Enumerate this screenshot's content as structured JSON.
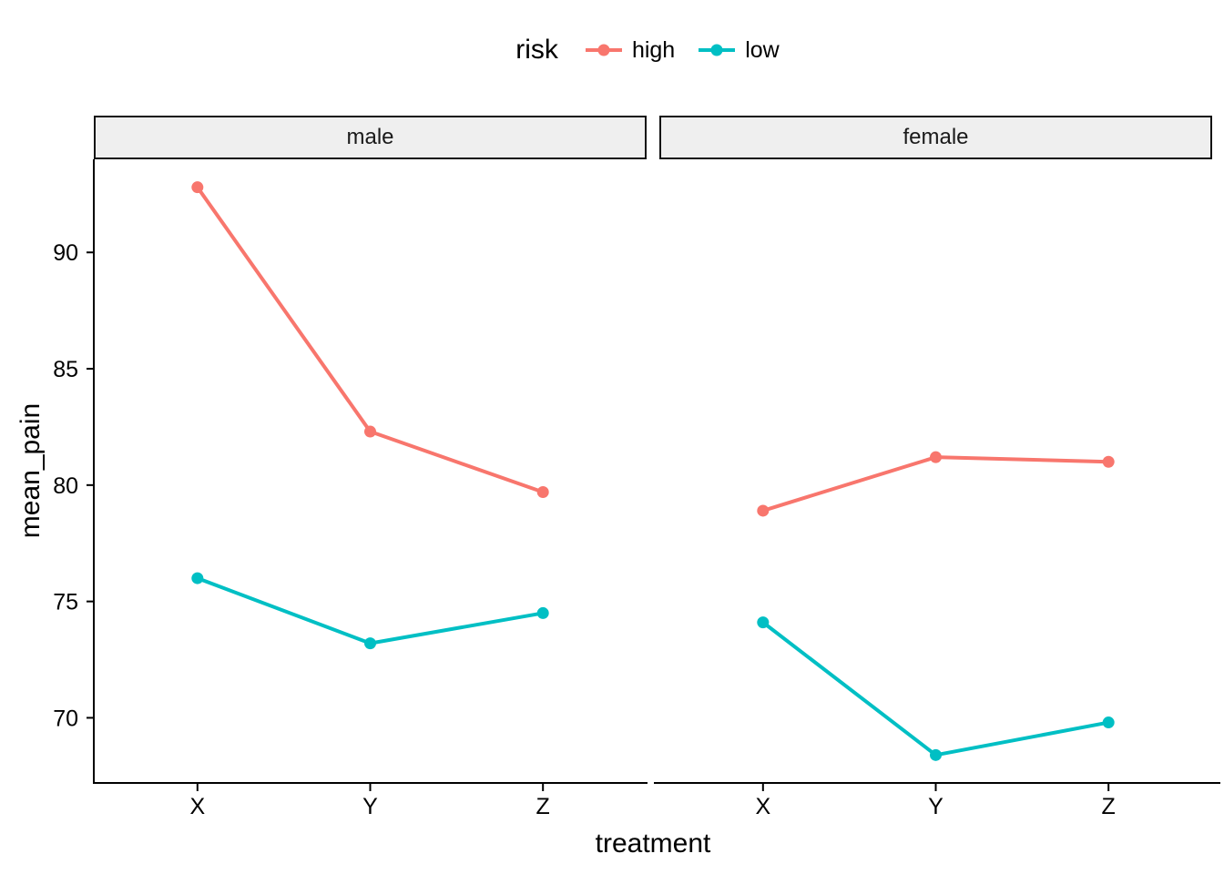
{
  "legend": {
    "title": "risk",
    "items": [
      {
        "label": "high",
        "color": "#F8766D"
      },
      {
        "label": "low",
        "color": "#00BFC4"
      }
    ]
  },
  "axes": {
    "y_ticks": [
      90,
      85,
      80,
      75,
      70
    ],
    "tick_color": "#000000",
    "axis_line_color": "#000000"
  },
  "strip": {
    "fill": "#EFEFEF",
    "border": "#111111"
  },
  "chart_data": {
    "type": "line",
    "title": "",
    "xlabel": "treatment",
    "ylabel": "mean_pain",
    "categories": [
      "X",
      "Y",
      "Z"
    ],
    "facets": [
      {
        "label": "male",
        "series": [
          {
            "name": "high",
            "values": [
              92.8,
              82.3,
              79.7
            ]
          },
          {
            "name": "low",
            "values": [
              76.0,
              73.2,
              74.5
            ]
          }
        ]
      },
      {
        "label": "female",
        "series": [
          {
            "name": "high",
            "values": [
              78.9,
              81.2,
              81.0
            ]
          },
          {
            "name": "low",
            "values": [
              74.1,
              68.4,
              69.8
            ]
          }
        ]
      }
    ],
    "ylim": [
      67.2,
      94.0
    ],
    "colors": {
      "high": "#F8766D",
      "low": "#00BFC4"
    },
    "legend_position": "top",
    "grid": false,
    "theme": "classic"
  }
}
